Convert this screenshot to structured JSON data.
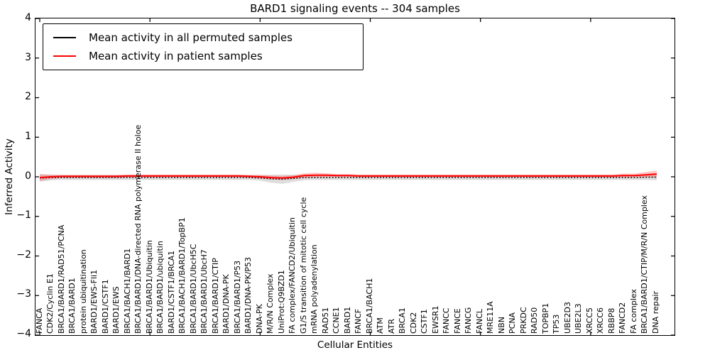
{
  "figure": {
    "background": "#ffffff",
    "axes_color": "#000000"
  },
  "legend": {
    "entries": [
      {
        "label": "Mean activity in all permuted samples",
        "color": "#000000"
      },
      {
        "label": "Mean activity in patient samples",
        "color": "#ff0000"
      }
    ],
    "position": "upper left"
  },
  "chart_data": {
    "type": "line",
    "title": "BARD1 signaling events -- 304 samples",
    "xlabel": "Cellular Entities",
    "ylabel": "Inferred Activity",
    "ylim": [
      -4,
      4
    ],
    "yticks": [
      4,
      3,
      2,
      1,
      0,
      -1,
      -2,
      -3,
      -4
    ],
    "xtick_major_every": 10,
    "grid": false,
    "legend_position": "upper left",
    "categories": [
      "FANCA",
      "CDK2/Cyclin E1",
      "BRCA1/BARD1/RAD51/PCNA",
      "BRCA1/BARD1",
      "protein ubiquitination",
      "BARD1/EWS-Fli1",
      "BARD1/CSTF1",
      "BARD1/EWS",
      "BRCA1/BACH1/BARD1",
      "BRCA1/BARD1/DNA-directed RNA polymerase II holoe",
      "BRCA1/BARD1/Ubiquitin",
      "BRCA1/BARD1/ubiquitin",
      "BARD1/CSTF1/BRCA1",
      "BRCA1/BACH1/BARD1/TopBP1",
      "BRCA1/BARD1/UbcH5C",
      "BRCA1/BARD1/UbcH7",
      "BRCA1/BARD1/CTIP",
      "BARD1/DNA-PK",
      "BRCA1/BARD1/P53",
      "BARD1/DNA-PK/P53",
      "DNA-PK",
      "M/R/N Complex",
      "UniProt:Q9BZD1",
      "FA complex/FANCD2/Ubiquitin",
      "G1/S transition of mitotic cell cycle",
      "mRNA polyadenylation",
      "RAD51",
      "CCNE1",
      "BARD1",
      "FANCF",
      "BRCA1/BACH1",
      "ATM",
      "ATR",
      "BRCA1",
      "CDK2",
      "CSTF1",
      "EWSR1",
      "FANCC",
      "FANCE",
      "FANCG",
      "FANCL",
      "MRE11A",
      "NBN",
      "PCNA",
      "PRKDC",
      "RAD50",
      "TOPBP1",
      "TP53",
      "UBE2D3",
      "UBE2L3",
      "XRCC5",
      "XRCC6",
      "RBBP8",
      "FANCD2",
      "FA complex",
      "BRCA1/BARD1/CTIP/M/R/N Complex",
      "DNA repair"
    ],
    "series": [
      {
        "name": "Mean activity in all permuted samples",
        "color": "#000000",
        "line_style": "dotted",
        "band_color": "rgba(0,0,0,0.13)",
        "values": [
          -0.03,
          -0.02,
          -0.02,
          -0.02,
          -0.02,
          -0.02,
          -0.02,
          -0.02,
          -0.02,
          -0.02,
          -0.02,
          -0.02,
          -0.02,
          -0.02,
          -0.02,
          -0.02,
          -0.02,
          -0.02,
          -0.02,
          -0.02,
          -0.03,
          -0.05,
          -0.06,
          -0.04,
          -0.02,
          -0.02,
          -0.02,
          -0.02,
          -0.02,
          -0.02,
          -0.02,
          -0.02,
          -0.02,
          -0.02,
          -0.02,
          -0.02,
          -0.02,
          -0.02,
          -0.02,
          -0.02,
          -0.02,
          -0.02,
          -0.02,
          -0.02,
          -0.02,
          -0.02,
          -0.02,
          -0.02,
          -0.02,
          -0.02,
          -0.02,
          -0.02,
          -0.02,
          -0.02,
          -0.02,
          -0.01,
          -0.01
        ],
        "band_halfwidth": [
          0.09,
          0.07,
          0.06,
          0.06,
          0.06,
          0.06,
          0.06,
          0.06,
          0.06,
          0.06,
          0.06,
          0.06,
          0.06,
          0.06,
          0.06,
          0.06,
          0.06,
          0.06,
          0.06,
          0.06,
          0.07,
          0.1,
          0.12,
          0.09,
          0.07,
          0.06,
          0.06,
          0.06,
          0.06,
          0.06,
          0.06,
          0.06,
          0.06,
          0.06,
          0.06,
          0.06,
          0.06,
          0.06,
          0.06,
          0.06,
          0.06,
          0.06,
          0.06,
          0.06,
          0.06,
          0.06,
          0.06,
          0.06,
          0.06,
          0.06,
          0.06,
          0.06,
          0.06,
          0.06,
          0.06,
          0.07,
          0.08
        ]
      },
      {
        "name": "Mean activity in patient samples",
        "color": "#ff0000",
        "line_style": "solid",
        "band_color": "rgba(255,0,0,0.22)",
        "values": [
          -0.02,
          0.0,
          0.01,
          0.01,
          0.01,
          0.01,
          0.01,
          0.01,
          0.02,
          0.02,
          0.02,
          0.02,
          0.02,
          0.02,
          0.02,
          0.02,
          0.02,
          0.02,
          0.02,
          0.01,
          0.0,
          -0.02,
          -0.03,
          -0.01,
          0.03,
          0.04,
          0.04,
          0.03,
          0.03,
          0.02,
          0.02,
          0.02,
          0.02,
          0.02,
          0.02,
          0.02,
          0.02,
          0.02,
          0.02,
          0.02,
          0.02,
          0.02,
          0.02,
          0.02,
          0.02,
          0.02,
          0.02,
          0.02,
          0.02,
          0.02,
          0.02,
          0.02,
          0.02,
          0.03,
          0.03,
          0.05,
          0.07
        ],
        "band_halfwidth": [
          0.09,
          0.06,
          0.04,
          0.04,
          0.04,
          0.04,
          0.04,
          0.04,
          0.04,
          0.04,
          0.04,
          0.04,
          0.04,
          0.04,
          0.04,
          0.04,
          0.04,
          0.04,
          0.04,
          0.04,
          0.05,
          0.05,
          0.05,
          0.05,
          0.06,
          0.06,
          0.05,
          0.04,
          0.04,
          0.04,
          0.04,
          0.04,
          0.04,
          0.04,
          0.04,
          0.04,
          0.04,
          0.04,
          0.04,
          0.04,
          0.04,
          0.04,
          0.04,
          0.04,
          0.04,
          0.04,
          0.04,
          0.04,
          0.04,
          0.04,
          0.04,
          0.04,
          0.04,
          0.05,
          0.05,
          0.07,
          0.09
        ]
      }
    ]
  }
}
